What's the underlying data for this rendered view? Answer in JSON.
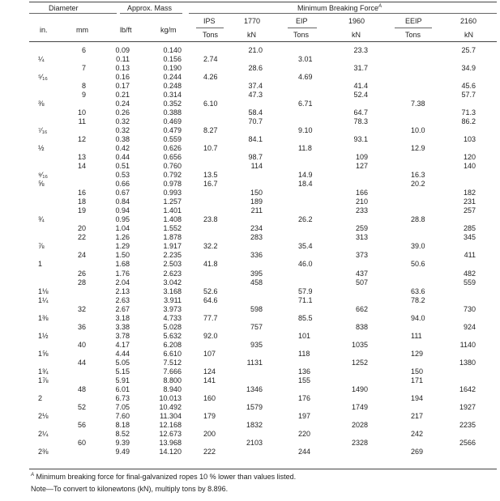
{
  "header": {
    "diameter": "Diameter",
    "approx_mass": "Approx. Mass",
    "min_breaking_force": "Minimum Breaking Force",
    "mbf_sup": "A",
    "in": "in.",
    "mm": "mm",
    "lbft": "lb/ft",
    "kgm": "kg/m",
    "ips": "IPS",
    "ips_unit": "Tons",
    "c1770": "1770",
    "c1770_unit": "kN",
    "eip": "EIP",
    "eip_unit": "Tons",
    "c1960": "1960",
    "c1960_unit": "kN",
    "eeip": "EEIP",
    "eeip_unit": "Tons",
    "c2160": "2160",
    "c2160_unit": "kN"
  },
  "rows": [
    [
      "",
      "6",
      "0.09",
      "0.140",
      "",
      "21.0",
      "",
      "23.3",
      "",
      "25.7"
    ],
    [
      "¼",
      "",
      "0.11",
      "0.156",
      "2.74",
      "",
      "3.01",
      "",
      "",
      ""
    ],
    [
      "",
      "7",
      "0.13",
      "0.190",
      "",
      "28.6",
      "",
      "31.7",
      "",
      "34.9"
    ],
    [
      "⁵⁄₁₆",
      "",
      "0.16",
      "0.244",
      "4.26",
      "",
      "4.69",
      "",
      "",
      ""
    ],
    [
      "",
      "8",
      "0.17",
      "0.248",
      "",
      "37.4",
      "",
      "41.4",
      "",
      "45.6"
    ],
    [
      "",
      "9",
      "0.21",
      "0.314",
      "",
      "47.3",
      "",
      "52.4",
      "",
      "57.7"
    ],
    [
      "⅜",
      "",
      "0.24",
      "0.352",
      "6.10",
      "",
      "6.71",
      "",
      "7.38",
      ""
    ],
    [
      "",
      "10",
      "0.26",
      "0.388",
      "",
      "58.4",
      "",
      "64.7",
      "",
      "71.3"
    ],
    [
      "",
      "11",
      "0.32",
      "0.469",
      "",
      "70.7",
      "",
      "78.3",
      "",
      "86.2"
    ],
    [
      "⁷⁄₁₆",
      "",
      "0.32",
      "0.479",
      "8.27",
      "",
      "9.10",
      "",
      "10.0",
      ""
    ],
    [
      "",
      "12",
      "0.38",
      "0.559",
      "",
      "84.1",
      "",
      "93.1",
      "",
      "103"
    ],
    [
      "½",
      "",
      "0.42",
      "0.626",
      "10.7",
      "",
      "11.8",
      "",
      "12.9",
      ""
    ],
    [
      "",
      "13",
      "0.44",
      "0.656",
      "",
      "98.7",
      "",
      "109",
      "",
      "120"
    ],
    [
      "",
      "14",
      "0.51",
      "0.760",
      "",
      "114",
      "",
      "127",
      "",
      "140"
    ],
    [
      "⁹⁄₁₆",
      "",
      "0.53",
      "0.792",
      "13.5",
      "",
      "14.9",
      "",
      "16.3",
      ""
    ],
    [
      "⅝",
      "",
      "0.66",
      "0.978",
      "16.7",
      "",
      "18.4",
      "",
      "20.2",
      ""
    ],
    [
      "",
      "16",
      "0.67",
      "0.993",
      "",
      "150",
      "",
      "166",
      "",
      "182"
    ],
    [
      "",
      "18",
      "0.84",
      "1.257",
      "",
      "189",
      "",
      "210",
      "",
      "231"
    ],
    [
      "",
      "19",
      "0.94",
      "1.401",
      "",
      "211",
      "",
      "233",
      "",
      "257"
    ],
    [
      "¾",
      "",
      "0.95",
      "1.408",
      "23.8",
      "",
      "26.2",
      "",
      "28.8",
      ""
    ],
    [
      "",
      "20",
      "1.04",
      "1.552",
      "",
      "234",
      "",
      "259",
      "",
      "285"
    ],
    [
      "",
      "22",
      "1.26",
      "1.878",
      "",
      "283",
      "",
      "313",
      "",
      "345"
    ],
    [
      "⅞",
      "",
      "1.29",
      "1.917",
      "32.2",
      "",
      "35.4",
      "",
      "39.0",
      ""
    ],
    [
      "",
      "24",
      "1.50",
      "2.235",
      "",
      "336",
      "",
      "373",
      "",
      "411"
    ],
    [
      "1",
      "",
      "1.68",
      "2.503",
      "41.8",
      "",
      "46.0",
      "",
      "50.6",
      ""
    ],
    [
      "",
      "26",
      "1.76",
      "2.623",
      "",
      "395",
      "",
      "437",
      "",
      "482"
    ],
    [
      "",
      "28",
      "2.04",
      "3.042",
      "",
      "458",
      "",
      "507",
      "",
      "559"
    ],
    [
      "1⅛",
      "",
      "2.13",
      "3.168",
      "52.6",
      "",
      "57.9",
      "",
      "63.6",
      ""
    ],
    [
      "1¼",
      "",
      "2.63",
      "3.911",
      "64.6",
      "",
      "71.1",
      "",
      "78.2",
      ""
    ],
    [
      "",
      "32",
      "2.67",
      "3.973",
      "",
      "598",
      "",
      "662",
      "",
      "730"
    ],
    [
      "1⅜",
      "",
      "3.18",
      "4.733",
      "77.7",
      "",
      "85.5",
      "",
      "94.0",
      ""
    ],
    [
      "",
      "36",
      "3.38",
      "5.028",
      "",
      "757",
      "",
      "838",
      "",
      "924"
    ],
    [
      "1½",
      "",
      "3.78",
      "5.632",
      "92.0",
      "",
      "101",
      "",
      "111",
      ""
    ],
    [
      "",
      "40",
      "4.17",
      "6.208",
      "",
      "935",
      "",
      "1035",
      "",
      "1140"
    ],
    [
      "1⅝",
      "",
      "4.44",
      "6.610",
      "107",
      "",
      "118",
      "",
      "129",
      ""
    ],
    [
      "",
      "44",
      "5.05",
      "7.512",
      "",
      "1131",
      "",
      "1252",
      "",
      "1380"
    ],
    [
      "1¾",
      "",
      "5.15",
      "7.666",
      "124",
      "",
      "136",
      "",
      "150",
      ""
    ],
    [
      "1⅞",
      "",
      "5.91",
      "8.800",
      "141",
      "",
      "155",
      "",
      "171",
      ""
    ],
    [
      "",
      "48",
      "6.01",
      "8.940",
      "",
      "1346",
      "",
      "1490",
      "",
      "1642"
    ],
    [
      "2",
      "",
      "6.73",
      "10.013",
      "160",
      "",
      "176",
      "",
      "194",
      ""
    ],
    [
      "",
      "52",
      "7.05",
      "10.492",
      "",
      "1579",
      "",
      "1749",
      "",
      "1927"
    ],
    [
      "2⅛",
      "",
      "7.60",
      "11.304",
      "179",
      "",
      "197",
      "",
      "217",
      ""
    ],
    [
      "",
      "56",
      "8.18",
      "12.168",
      "",
      "1832",
      "",
      "2028",
      "",
      "2235"
    ],
    [
      "2¼",
      "",
      "8.52",
      "12.673",
      "200",
      "",
      "220",
      "",
      "242",
      ""
    ],
    [
      "",
      "60",
      "9.39",
      "13.968",
      "",
      "2103",
      "",
      "2328",
      "",
      "2566"
    ],
    [
      "2⅜",
      "",
      "9.49",
      "14.120",
      "222",
      "",
      "244",
      "",
      "269",
      ""
    ]
  ],
  "footnotes": {
    "a_marker": "A",
    "a_text": " Minimum breaking force for final-galvanized ropes 10 % lower than values listed.",
    "note": "Note—To convert to kilonewtons (kN), multiply tons by 8.896."
  }
}
